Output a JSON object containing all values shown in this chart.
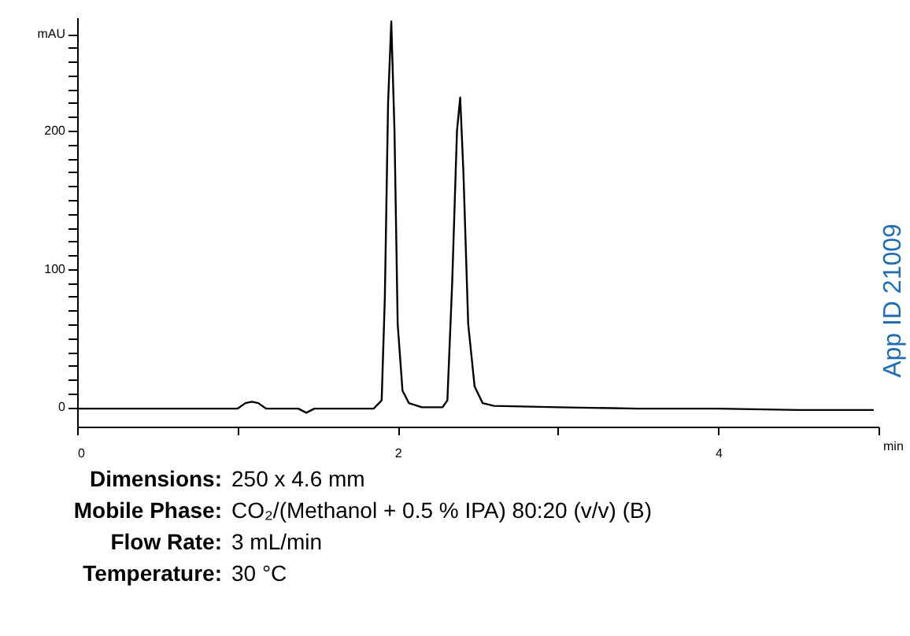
{
  "chart_data": {
    "type": "line",
    "xlabel": "min",
    "x": [
      0,
      0.5,
      1.0,
      1.05,
      1.09,
      1.13,
      1.18,
      1.3,
      1.38,
      1.43,
      1.48,
      1.6,
      1.85,
      1.9,
      1.92,
      1.94,
      1.96,
      1.98,
      2.0,
      2.03,
      2.07,
      2.15,
      2.28,
      2.31,
      2.34,
      2.37,
      2.39,
      2.41,
      2.44,
      2.48,
      2.53,
      2.6,
      3.0,
      3.5,
      4.0,
      4.5,
      4.97
    ],
    "series": [
      {
        "color": "#000000",
        "values": [
          -1,
          -1,
          -1,
          3,
          4,
          3,
          -1,
          -1,
          -1,
          -4,
          -1,
          -1,
          -1,
          5,
          80,
          220,
          279,
          200,
          60,
          12,
          3,
          0,
          0,
          5,
          90,
          200,
          224,
          170,
          60,
          15,
          3,
          1,
          0,
          -1,
          -1,
          -2,
          -2
        ]
      }
    ],
    "xlim": [
      0,
      5
    ],
    "xticks": [
      0,
      {
        "value": 1,
        "label": null
      },
      2,
      {
        "value": 3,
        "label": null
      },
      4,
      {
        "value": 5,
        "label": null
      }
    ],
    "ylim": [
      -14,
      282
    ],
    "yticks": [
      0,
      {
        "value": 10,
        "label": null
      },
      {
        "value": 20,
        "label": null
      },
      {
        "value": 30,
        "label": null
      },
      {
        "value": 40,
        "label": null
      },
      {
        "value": 50,
        "label": null
      },
      {
        "value": 60,
        "label": null
      },
      {
        "value": 70,
        "label": null
      },
      {
        "value": 80,
        "label": null
      },
      {
        "value": 90,
        "label": null
      },
      100,
      {
        "value": 110,
        "label": null
      },
      {
        "value": 120,
        "label": null
      },
      {
        "value": 130,
        "label": null
      },
      {
        "value": 140,
        "label": null
      },
      {
        "value": 150,
        "label": null
      },
      {
        "value": 160,
        "label": null
      },
      {
        "value": 170,
        "label": null
      },
      {
        "value": 180,
        "label": null
      },
      {
        "value": 190,
        "label": null
      },
      200,
      {
        "value": 210,
        "label": null
      },
      {
        "value": 220,
        "label": null
      },
      {
        "value": 230,
        "label": null
      },
      {
        "value": 240,
        "label": null
      },
      {
        "value": 250,
        "label": null
      },
      {
        "value": 260,
        "label": null
      },
      {
        "value": 270,
        "label": "mAU"
      }
    ],
    "grid": false,
    "marker": "none",
    "line_style": "solid",
    "annotations": [
      "App ID 21009",
      "Dimensions: 250 x 4.6 mm",
      "Mobile Phase: CO₂/(Methanol + 0.5 % IPA) 80:20 (v/v) (B)",
      "Flow Rate: 3 mL/min",
      "Temperature: 30 °C"
    ]
  }
}
